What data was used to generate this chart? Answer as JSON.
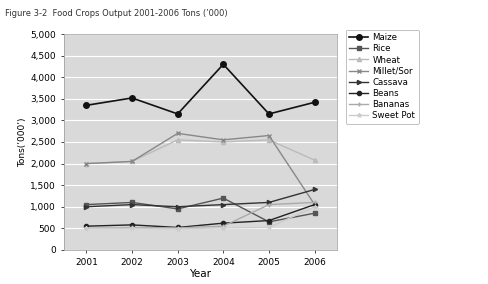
{
  "years": [
    2001,
    2002,
    2003,
    2004,
    2005,
    2006
  ],
  "series": {
    "Maize": [
      3350,
      3520,
      3150,
      4300,
      3150,
      3420
    ],
    "Rice": [
      1050,
      1100,
      950,
      1200,
      650,
      850
    ],
    "Wheat": [
      2000,
      2050,
      2550,
      2500,
      2550,
      2080
    ],
    "Millet/Sor": [
      2000,
      2050,
      2700,
      2550,
      2650,
      1050
    ],
    "Cassava": [
      1000,
      1050,
      1000,
      1050,
      1100,
      1400
    ],
    "Beans": [
      550,
      580,
      520,
      620,
      680,
      1050
    ],
    "Bananas": [
      500,
      520,
      510,
      550,
      1050,
      1100
    ],
    "Sweet Pot": [
      500,
      500,
      490,
      510,
      520,
      1000
    ]
  },
  "colors": {
    "Maize": "#111111",
    "Rice": "#555555",
    "Wheat": "#bbbbbb",
    "Millet/Sor": "#888888",
    "Cassava": "#333333",
    "Beans": "#222222",
    "Bananas": "#aaaaaa",
    "Sweet Pot": "#cccccc"
  },
  "markers": {
    "Maize": "o",
    "Rice": "s",
    "Wheat": "^",
    "Millet/Sor": "x",
    "Cassava": ">",
    "Beans": "o",
    "Bananas": "+",
    "Sweet Pot": "*"
  },
  "title": "Figure 3-2  Food Crops Output 2001-2006 Tons (’000)",
  "xlabel": "Year",
  "ylabel": "Tons(’000’)",
  "ylim": [
    0,
    5000
  ],
  "yticks": [
    0,
    500,
    1000,
    1500,
    2000,
    2500,
    3000,
    3500,
    4000,
    4500,
    5000
  ],
  "plot_bg": "#d9d9d9",
  "fig_bg": "#ffffff"
}
